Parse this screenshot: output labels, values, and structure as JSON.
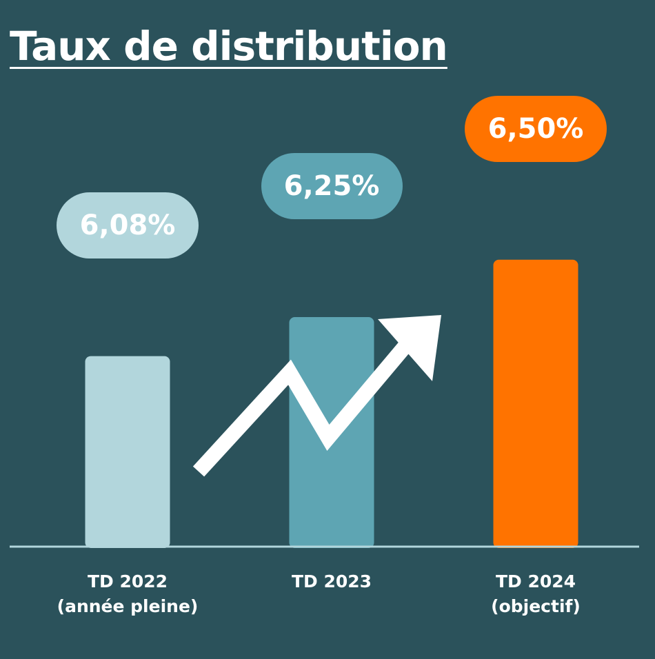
{
  "chart_data": {
    "type": "bar",
    "title": "Taux de distribution",
    "categories": [
      {
        "line1": "TD 2022",
        "line2": "(année pleine)"
      },
      {
        "line1": "TD 2023",
        "line2": ""
      },
      {
        "line1": "TD 2024",
        "line2": "(objectif)"
      }
    ],
    "values": [
      6.08,
      6.25,
      6.5
    ],
    "value_labels": [
      "6,08%",
      "6,25%",
      "6,50%"
    ],
    "unit": "%",
    "colors": [
      "#b2d6dc",
      "#5ea5b3",
      "#ff7300"
    ],
    "arrow_color": "#ffffff",
    "axis_color": "#b2d6dc",
    "trend": "increasing"
  }
}
